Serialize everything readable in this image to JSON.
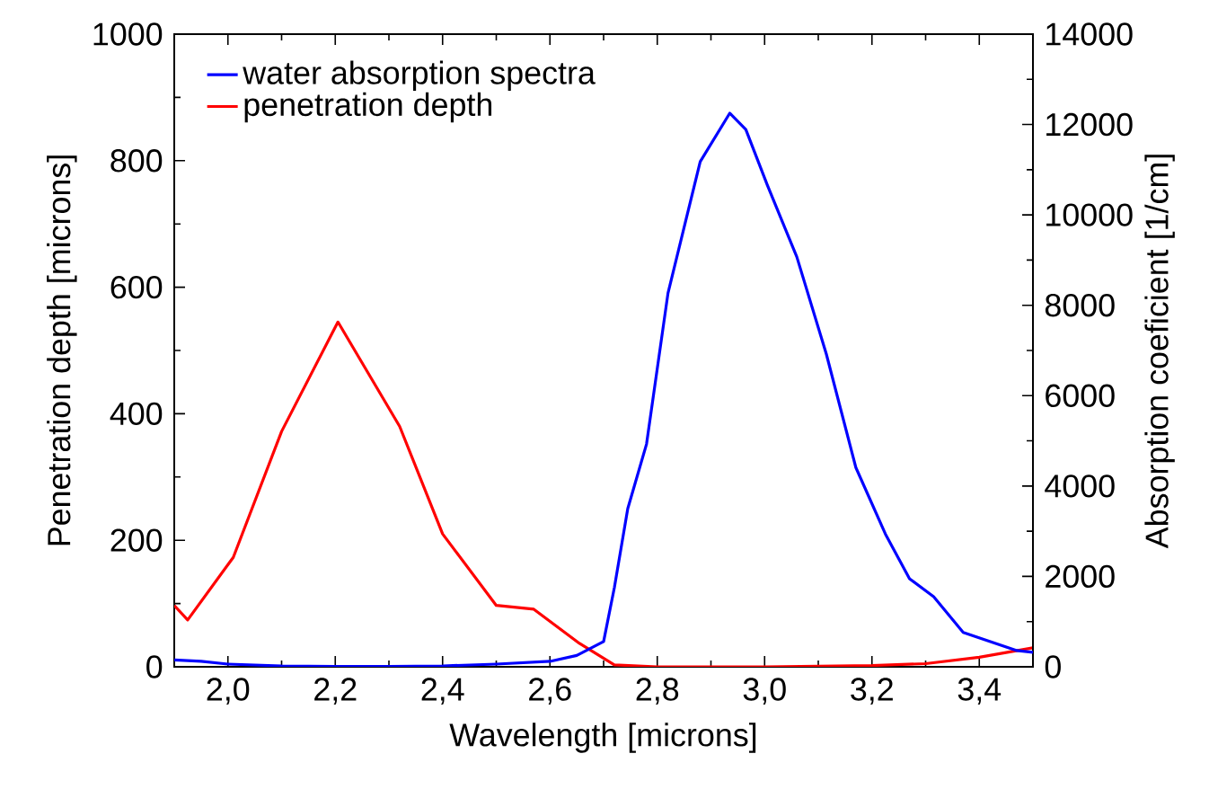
{
  "chart_data": {
    "type": "line",
    "xlabel": "Wavelength [microns]",
    "ylabel": "Penetration depth [microns]",
    "y2label": "Absorption coeficient [1/cm]",
    "series": [
      {
        "name": "water absorption spectra",
        "color": "#0000ff",
        "axis": "y2",
        "x": [
          1.9,
          1.95,
          2.0,
          2.1,
          2.2,
          2.3,
          2.4,
          2.5,
          2.6,
          2.65,
          2.7,
          2.72,
          2.745,
          2.78,
          2.82,
          2.88,
          2.935,
          2.965,
          3.005,
          3.06,
          3.115,
          3.17,
          3.225,
          3.27,
          3.315,
          3.37,
          3.47,
          3.5
        ],
        "values": [
          150,
          120,
          60,
          20,
          10,
          10,
          20,
          60,
          120,
          250,
          560,
          1750,
          3500,
          4930,
          8270,
          11180,
          12250,
          11890,
          10660,
          9070,
          6920,
          4410,
          2940,
          1950,
          1550,
          760,
          360,
          320
        ]
      },
      {
        "name": "penetration depth",
        "color": "#ff0000",
        "x": [
          1.9,
          1.925,
          2.01,
          2.1,
          2.205,
          2.32,
          2.4,
          2.5,
          2.57,
          2.655,
          2.72,
          2.8,
          3.0,
          3.2,
          3.3,
          3.4,
          3.5
        ],
        "values": [
          97,
          74,
          173,
          372,
          545,
          380,
          210,
          97,
          91,
          37,
          3,
          0,
          0,
          2,
          5,
          15,
          30
        ]
      }
    ],
    "xlim": [
      1.9,
      3.5
    ],
    "xticks": [
      {
        "value": 2.0,
        "label": "2,0"
      },
      {
        "value": 2.2,
        "label": "2,2"
      },
      {
        "value": 2.4,
        "label": "2,4"
      },
      {
        "value": 2.6,
        "label": "2,6"
      },
      {
        "value": 2.8,
        "label": "2,8"
      },
      {
        "value": 3.0,
        "label": "3,0"
      },
      {
        "value": 3.2,
        "label": "3,2"
      },
      {
        "value": 3.4,
        "label": "3,4"
      }
    ],
    "ylim": [
      0,
      1000
    ],
    "yticks": [
      0,
      200,
      400,
      600,
      800,
      1000
    ],
    "y2lim": [
      0,
      14000
    ],
    "y2ticks": [
      0,
      2000,
      4000,
      6000,
      8000,
      10000,
      12000,
      14000
    ],
    "legend": "top left",
    "grid": false,
    "marker": "none",
    "line_style": "solid"
  }
}
